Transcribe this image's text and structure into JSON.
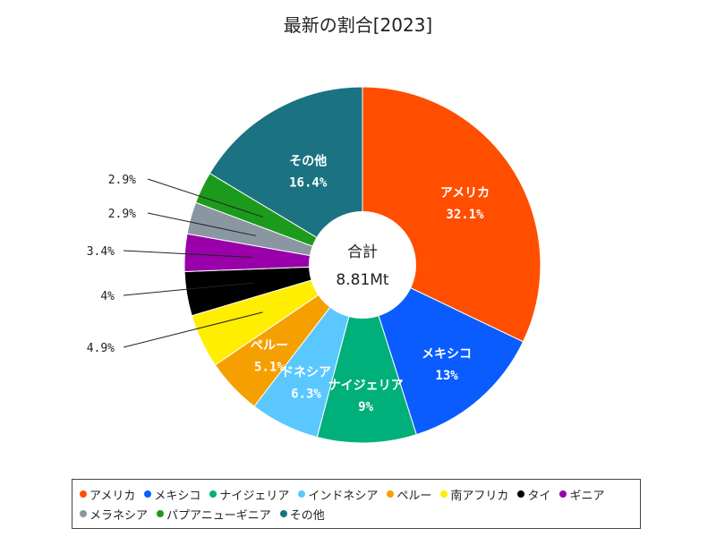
{
  "chart_data": {
    "type": "pie",
    "title": "最新の割合[2023]",
    "center_label": "合計",
    "center_value": "8.81Mt",
    "slices": [
      {
        "name": "アメリカ",
        "value": 32.1,
        "label": "32.1%",
        "color": "#ff4e00"
      },
      {
        "name": "メキシコ",
        "value": 13.0,
        "label": "13%",
        "color": "#0a5cff"
      },
      {
        "name": "ナイジェリア",
        "value": 9.0,
        "label": "9%",
        "color": "#00b07a"
      },
      {
        "name": "インドネシア",
        "value": 6.3,
        "label": "6.3%",
        "color": "#5ac8ff"
      },
      {
        "name": "ペルー",
        "value": 5.1,
        "label": "5.1%",
        "color": "#f5a000"
      },
      {
        "name": "南アフリカ",
        "value": 4.9,
        "label": "4.9%",
        "color": "#ffee00"
      },
      {
        "name": "タイ",
        "value": 4.0,
        "label": "4%",
        "color": "#000000"
      },
      {
        "name": "ギニア",
        "value": 3.4,
        "label": "3.4%",
        "color": "#9900aa"
      },
      {
        "name": "メラネシア",
        "value": 2.9,
        "label": "2.9%",
        "color": "#8a96a0"
      },
      {
        "name": "パプアニューギニア",
        "value": 2.9,
        "label": "2.9%",
        "color": "#1c9a1c"
      },
      {
        "name": "その他",
        "value": 16.4,
        "label": "16.4%",
        "color": "#1b7280"
      }
    ],
    "slice_display_names": {
      "インドネシア": "ドネシア",
      "ペルー": "ペルー"
    },
    "legend_position": "bottom"
  }
}
